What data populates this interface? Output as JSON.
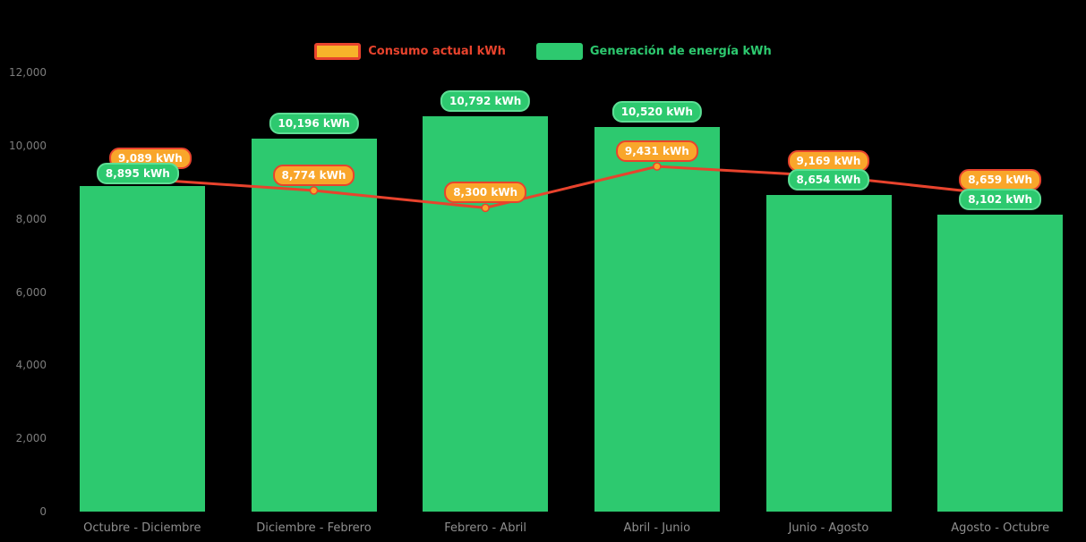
{
  "chart_data": {
    "type": "bar",
    "subtype": "bar-line-combo",
    "title": "",
    "unit": "kWh",
    "categories": [
      "Octubre - Diciembre",
      "Diciembre - Febrero",
      "Febrero - Abril",
      "Abril - Junio",
      "Junio - Agosto",
      "Agosto - Octubre"
    ],
    "series": [
      {
        "name": "Consumo actual kWh",
        "type": "line",
        "color": "#e8432d",
        "marker_color": "#f9a62b",
        "label_bg": "#f9a62b",
        "label_border": "#e8432d",
        "values": [
          9089,
          8774,
          8300,
          9431,
          9169,
          8659
        ]
      },
      {
        "name": "Generación de energía kWh",
        "type": "bar",
        "color": "#2dc96f",
        "label_bg": "#2dc96f",
        "label_border": "#5ddf95",
        "values": [
          8895,
          10196,
          10792,
          10520,
          8654,
          8102
        ]
      }
    ],
    "ylim": [
      0,
      12000
    ],
    "yticks": [
      0,
      2000,
      4000,
      6000,
      8000,
      10000,
      12000
    ],
    "grid": false,
    "legend_position": "top",
    "background": "#000000",
    "axis_text_color": "#7d7d7d",
    "data_labels": {
      "consumption": [
        "9,089 kWh",
        "8,774 kWh",
        "8,300 kWh",
        "9,431 kWh",
        "9,169 kWh",
        "8,659 kWh"
      ],
      "generation": [
        "8,895 kWh",
        "10,196 kWh",
        "10,792 kWh",
        "10,520 kWh",
        "8,654 kWh",
        "8,102 kWh"
      ]
    }
  }
}
